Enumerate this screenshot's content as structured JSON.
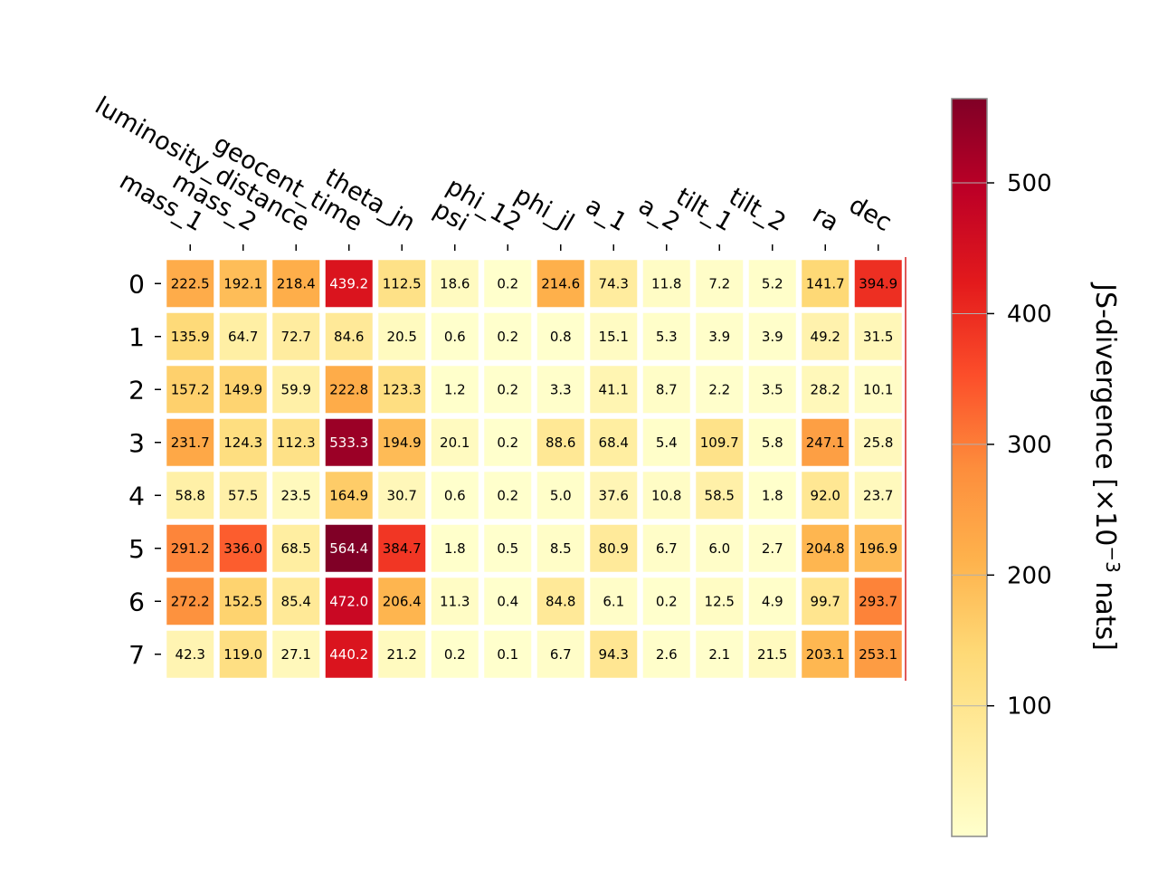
{
  "chart_data": {
    "type": "heatmap",
    "columns": [
      "mass_1",
      "mass_2",
      "luminosity_distance",
      "geocent_time",
      "theta_jn",
      "psi",
      "phi_12",
      "phi_jl",
      "a_1",
      "a_2",
      "tilt_1",
      "tilt_2",
      "ra",
      "dec"
    ],
    "rows": [
      "0",
      "1",
      "2",
      "3",
      "4",
      "5",
      "6",
      "7"
    ],
    "values": [
      [
        222.5,
        192.1,
        218.4,
        439.2,
        112.5,
        18.6,
        0.2,
        214.6,
        74.3,
        11.8,
        7.2,
        5.2,
        141.7,
        394.9
      ],
      [
        135.9,
        64.7,
        72.7,
        84.6,
        20.5,
        0.6,
        0.2,
        0.8,
        15.1,
        5.3,
        3.9,
        3.9,
        49.2,
        31.5
      ],
      [
        157.2,
        149.9,
        59.9,
        222.8,
        123.3,
        1.2,
        0.2,
        3.3,
        41.1,
        8.7,
        2.2,
        3.5,
        28.2,
        10.1
      ],
      [
        231.7,
        124.3,
        112.3,
        533.3,
        194.9,
        20.1,
        0.2,
        88.6,
        68.4,
        5.4,
        109.7,
        5.8,
        247.1,
        25.8
      ],
      [
        58.8,
        57.5,
        23.5,
        164.9,
        30.7,
        0.6,
        0.2,
        5.0,
        37.6,
        10.8,
        58.5,
        1.8,
        92.0,
        23.7
      ],
      [
        291.2,
        336.0,
        68.5,
        564.4,
        384.7,
        1.8,
        0.5,
        8.5,
        80.9,
        6.7,
        6.0,
        2.7,
        204.8,
        196.9
      ],
      [
        272.2,
        152.5,
        85.4,
        472.0,
        206.4,
        11.3,
        0.4,
        84.8,
        6.1,
        0.2,
        12.5,
        4.9,
        99.7,
        293.7
      ],
      [
        42.3,
        119.0,
        27.1,
        440.2,
        21.2,
        0.2,
        0.1,
        6.7,
        94.3,
        2.6,
        2.1,
        21.5,
        203.1,
        253.1
      ]
    ],
    "colorbar": {
      "label_main": "JS-divergence [×10",
      "label_exponent": "−3",
      "label_unit": " nats]",
      "ticks": [
        "100",
        "200",
        "300",
        "400",
        "500"
      ],
      "tick_values": [
        100,
        200,
        300,
        400,
        500
      ],
      "range": [
        0.1,
        564.4
      ],
      "colormap": "YlOrRd"
    },
    "grid": false
  }
}
